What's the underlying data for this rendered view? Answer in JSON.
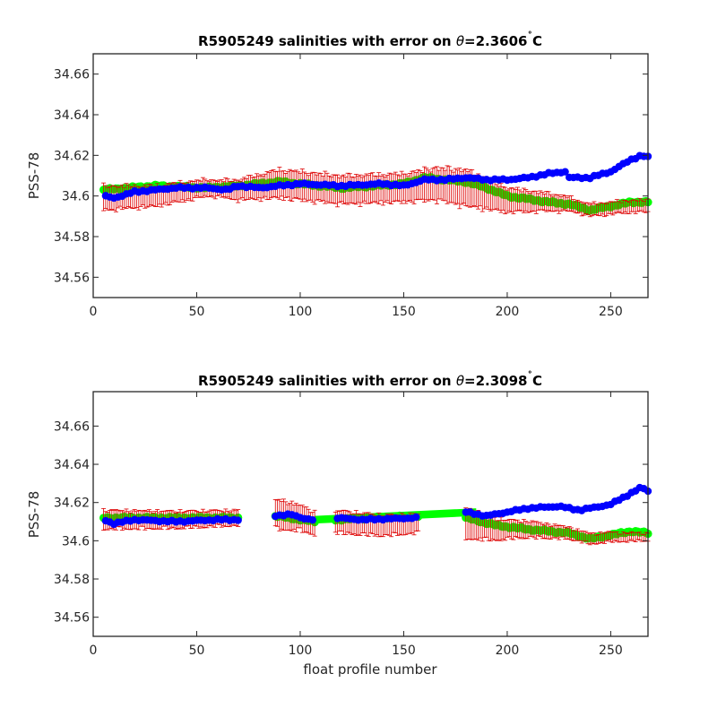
{
  "chart_data": [
    {
      "type": "scatter",
      "title_prefix": "R5905249 salinities with error on ",
      "theta_symbol": "θ",
      "title_value": "=2.3606",
      "degree": "˚",
      "title_unit": "C",
      "xlabel": "",
      "ylabel": "PSS-78",
      "xlim": [
        0,
        268
      ],
      "ylim": [
        34.55,
        34.67
      ],
      "xticks": [
        "0",
        "50",
        "100",
        "150",
        "200",
        "250"
      ],
      "yticks": [
        "34.56",
        "34.58",
        "34.6",
        "34.62",
        "34.64",
        "34.66"
      ],
      "colors": {
        "float": "#0000ff",
        "mapped": "#00ff00",
        "error": "#dd0000"
      },
      "segments": [
        [
          5,
          268
        ]
      ],
      "blue_knots": [
        [
          5,
          34.6
        ],
        [
          10,
          34.599
        ],
        [
          20,
          34.602
        ],
        [
          30,
          34.603
        ],
        [
          40,
          34.604
        ],
        [
          55,
          34.604
        ],
        [
          65,
          34.603
        ],
        [
          70,
          34.605
        ],
        [
          80,
          34.604
        ],
        [
          100,
          34.606
        ],
        [
          120,
          34.605
        ],
        [
          140,
          34.606
        ],
        [
          150,
          34.605
        ],
        [
          160,
          34.608
        ],
        [
          170,
          34.608
        ],
        [
          180,
          34.609
        ],
        [
          190,
          34.608
        ],
        [
          200,
          34.608
        ],
        [
          210,
          34.609
        ],
        [
          220,
          34.611
        ],
        [
          228,
          34.612
        ],
        [
          230,
          34.609
        ],
        [
          240,
          34.609
        ],
        [
          250,
          34.612
        ],
        [
          260,
          34.618
        ],
        [
          265,
          34.62
        ],
        [
          268,
          34.619
        ]
      ],
      "green_knots": [
        [
          5,
          34.603
        ],
        [
          30,
          34.605
        ],
        [
          55,
          34.604
        ],
        [
          70,
          34.605
        ],
        [
          90,
          34.607
        ],
        [
          120,
          34.604
        ],
        [
          150,
          34.606
        ],
        [
          160,
          34.609
        ],
        [
          170,
          34.608
        ],
        [
          180,
          34.607
        ],
        [
          190,
          34.604
        ],
        [
          200,
          34.6
        ],
        [
          220,
          34.597
        ],
        [
          230,
          34.596
        ],
        [
          240,
          34.593
        ],
        [
          250,
          34.595
        ],
        [
          260,
          34.597
        ],
        [
          268,
          34.597
        ]
      ],
      "red_knots": [
        [
          5,
          34.599
        ],
        [
          30,
          34.6
        ],
        [
          55,
          34.604
        ],
        [
          70,
          34.603
        ],
        [
          90,
          34.606
        ],
        [
          120,
          34.603
        ],
        [
          150,
          34.604
        ],
        [
          165,
          34.606
        ],
        [
          180,
          34.604
        ],
        [
          190,
          34.601
        ],
        [
          200,
          34.598
        ],
        [
          220,
          34.597
        ],
        [
          230,
          34.596
        ],
        [
          240,
          34.593
        ],
        [
          250,
          34.594
        ],
        [
          260,
          34.595
        ],
        [
          268,
          34.595
        ]
      ],
      "error_knots": [
        [
          5,
          0.006
        ],
        [
          60,
          0.004
        ],
        [
          90,
          0.007
        ],
        [
          150,
          0.007
        ],
        [
          180,
          0.009
        ],
        [
          200,
          0.006
        ],
        [
          225,
          0.004
        ],
        [
          235,
          0.003
        ],
        [
          268,
          0.003
        ]
      ]
    },
    {
      "type": "scatter",
      "title_prefix": "R5905249 salinities with error on ",
      "theta_symbol": "θ",
      "title_value": "=2.3098",
      "degree": "˚",
      "title_unit": "C",
      "xlabel": "float profile number",
      "ylabel": "PSS-78",
      "xlim": [
        0,
        268
      ],
      "ylim": [
        34.55,
        34.678
      ],
      "xticks": [
        "0",
        "50",
        "100",
        "150",
        "200",
        "250"
      ],
      "yticks": [
        "34.56",
        "34.58",
        "34.6",
        "34.62",
        "34.64",
        "34.66"
      ],
      "colors": {
        "float": "#0000ff",
        "mapped": "#00ff00",
        "error": "#dd0000"
      },
      "segments": [
        [
          5,
          70
        ],
        [
          88,
          107
        ],
        [
          117,
          157
        ],
        [
          180,
          268
        ]
      ],
      "blue_knots": [
        [
          5,
          34.611
        ],
        [
          10,
          34.609
        ],
        [
          20,
          34.611
        ],
        [
          40,
          34.61
        ],
        [
          60,
          34.611
        ],
        [
          70,
          34.611
        ],
        [
          88,
          34.613
        ],
        [
          95,
          34.614
        ],
        [
          100,
          34.612
        ],
        [
          107,
          34.611
        ],
        [
          117,
          34.612
        ],
        [
          130,
          34.611
        ],
        [
          157,
          34.612
        ],
        [
          180,
          34.615
        ],
        [
          190,
          34.613
        ],
        [
          200,
          34.615
        ],
        [
          210,
          34.617
        ],
        [
          225,
          34.618
        ],
        [
          235,
          34.616
        ],
        [
          250,
          34.619
        ],
        [
          260,
          34.625
        ],
        [
          265,
          34.628
        ],
        [
          268,
          34.626
        ]
      ],
      "green_knots": [
        [
          5,
          34.612
        ],
        [
          70,
          34.612
        ],
        [
          88,
          34.613
        ],
        [
          107,
          34.61
        ],
        [
          117,
          34.611
        ],
        [
          157,
          34.613
        ],
        [
          180,
          34.612
        ],
        [
          195,
          34.608
        ],
        [
          210,
          34.606
        ],
        [
          230,
          34.604
        ],
        [
          240,
          34.601
        ],
        [
          250,
          34.603
        ],
        [
          260,
          34.605
        ],
        [
          268,
          34.604
        ]
      ],
      "red_knots": [
        [
          5,
          34.611
        ],
        [
          40,
          34.611
        ],
        [
          70,
          34.612
        ],
        [
          88,
          34.614
        ],
        [
          100,
          34.612
        ],
        [
          107,
          34.609
        ],
        [
          117,
          34.61
        ],
        [
          140,
          34.608
        ],
        [
          157,
          34.609
        ],
        [
          180,
          34.609
        ],
        [
          195,
          34.606
        ],
        [
          210,
          34.606
        ],
        [
          230,
          34.604
        ],
        [
          240,
          34.601
        ],
        [
          250,
          34.602
        ],
        [
          268,
          34.602
        ]
      ],
      "error_knots": [
        [
          5,
          0.005
        ],
        [
          70,
          0.004
        ],
        [
          88,
          0.008
        ],
        [
          107,
          0.006
        ],
        [
          117,
          0.006
        ],
        [
          157,
          0.005
        ],
        [
          180,
          0.008
        ],
        [
          200,
          0.005
        ],
        [
          230,
          0.003
        ],
        [
          268,
          0.002
        ]
      ],
      "wide_band": {
        "x": [
          107,
          185
        ],
        "y_start": 34.611,
        "y_end": 34.615,
        "halfwidth": 0.002
      }
    }
  ]
}
